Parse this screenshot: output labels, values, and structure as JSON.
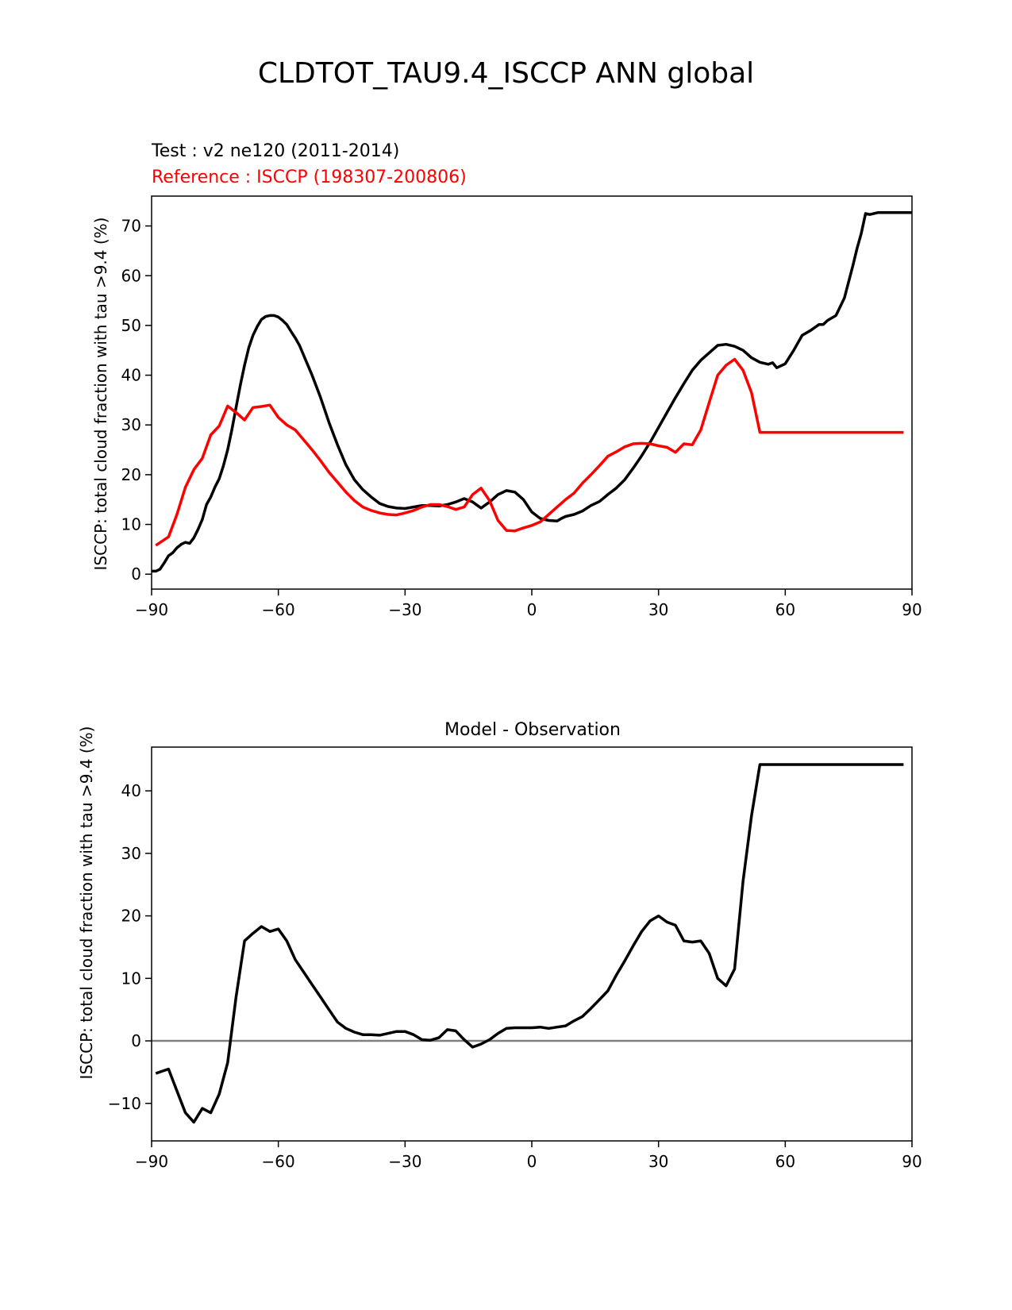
{
  "figure": {
    "title": "CLDTOT_TAU9.4_ISCCP ANN global"
  },
  "chart_data": [
    {
      "type": "line",
      "test_label": "Test : v2 ne120 (2011-2014)",
      "reference_label": "Reference : ISCCP (198307-200806)",
      "ylabel": "ISCCP: total cloud fraction with tau >9.4 (%)",
      "xlim": [
        -90,
        90
      ],
      "ylim": [
        -3,
        76
      ],
      "xticks": [
        -90,
        -60,
        -30,
        0,
        30,
        60,
        90
      ],
      "xtick_labels": [
        "−90",
        "−60",
        "−30",
        "0",
        "30",
        "60",
        "90"
      ],
      "yticks": [
        0,
        10,
        20,
        30,
        40,
        50,
        60,
        70
      ],
      "series": [
        {
          "color": "#000000",
          "x": [
            -90,
            -89,
            -88,
            -87,
            -86,
            -85,
            -84,
            -83,
            -82,
            -81,
            -80,
            -79,
            -78,
            -77,
            -76,
            -75,
            -74,
            -73,
            -72,
            -71,
            -70,
            -69,
            -68,
            -67,
            -66,
            -65,
            -64,
            -63,
            -62,
            -61,
            -60,
            -59,
            -58,
            -57,
            -56,
            -55,
            -54,
            -52,
            -50,
            -48,
            -46,
            -44,
            -42,
            -40,
            -38,
            -36,
            -34,
            -32,
            -30,
            -28,
            -26,
            -24,
            -22,
            -20,
            -18,
            -16,
            -14,
            -12,
            -10,
            -8,
            -6,
            -4,
            -2,
            0,
            2,
            4,
            6,
            7,
            8,
            10,
            12,
            14,
            16,
            18,
            20,
            22,
            24,
            26,
            28,
            30,
            32,
            34,
            36,
            38,
            40,
            42,
            44,
            46,
            48,
            50,
            52,
            54,
            56,
            57,
            58,
            60,
            62,
            64,
            66,
            68,
            69,
            70,
            72,
            74,
            76,
            77,
            78,
            79,
            80,
            81,
            82,
            83,
            84,
            85,
            86,
            87,
            88,
            89,
            90
          ],
          "y": [
            0.6,
            0.6,
            1.0,
            2.3,
            3.7,
            4.3,
            5.3,
            6.0,
            6.4,
            6.2,
            7.3,
            9.0,
            11.0,
            14.0,
            15.5,
            17.5,
            19.2,
            21.8,
            25.0,
            29.0,
            33.5,
            38.0,
            42.0,
            45.5,
            48.0,
            49.8,
            51.2,
            51.8,
            52.0,
            52.0,
            51.7,
            51.0,
            50.2,
            48.8,
            47.5,
            46.0,
            44.0,
            40.0,
            35.5,
            30.5,
            26.0,
            22.0,
            19.0,
            17.0,
            15.5,
            14.2,
            13.6,
            13.3,
            13.2,
            13.5,
            13.8,
            13.8,
            13.7,
            14.0,
            14.5,
            15.2,
            14.5,
            13.3,
            14.5,
            16.0,
            16.8,
            16.5,
            15.0,
            12.5,
            11.2,
            10.8,
            10.7,
            11.2,
            11.6,
            12.0,
            12.7,
            13.8,
            14.6,
            16.0,
            17.3,
            19.0,
            21.3,
            23.8,
            26.5,
            29.5,
            32.5,
            35.5,
            38.3,
            41.0,
            43.0,
            44.5,
            46.0,
            46.2,
            45.8,
            45.0,
            43.5,
            42.6,
            42.2,
            42.5,
            41.5,
            42.3,
            45.0,
            48.0,
            49.0,
            50.2,
            50.2,
            51.0,
            52.0,
            55.5,
            62.0,
            65.5,
            68.5,
            72.5,
            72.3,
            72.5,
            72.7,
            72.7,
            72.7,
            72.7,
            72.7,
            72.7,
            72.7,
            72.7,
            72.7
          ]
        },
        {
          "color": "#ff0000",
          "x": [
            -89,
            -86,
            -84,
            -82,
            -80,
            -78,
            -76,
            -74,
            -72,
            -70,
            -68,
            -66,
            -64,
            -62,
            -60,
            -58,
            -56,
            -54,
            -52,
            -50,
            -48,
            -46,
            -44,
            -42,
            -40,
            -38,
            -36,
            -34,
            -32,
            -30,
            -28,
            -26,
            -24,
            -22,
            -20,
            -18,
            -16,
            -14,
            -12,
            -10,
            -8,
            -6,
            -4,
            -2,
            0,
            2,
            4,
            6,
            8,
            10,
            12,
            14,
            16,
            18,
            20,
            22,
            24,
            26,
            28,
            30,
            32,
            34,
            36,
            38,
            40,
            42,
            44,
            46,
            48,
            50,
            52,
            54,
            56,
            58,
            60,
            62,
            64,
            66,
            68,
            70,
            72,
            74,
            76,
            78,
            80,
            82,
            84,
            86,
            88
          ],
          "y": [
            5.8,
            7.5,
            12.0,
            17.5,
            21.0,
            23.3,
            28.0,
            29.8,
            33.8,
            32.5,
            31.0,
            33.5,
            33.7,
            34.0,
            31.5,
            30.0,
            29.0,
            27.0,
            25.0,
            22.8,
            20.5,
            18.5,
            16.5,
            14.8,
            13.5,
            12.8,
            12.3,
            12.0,
            11.9,
            12.3,
            12.8,
            13.5,
            14.0,
            14.0,
            13.6,
            13.0,
            13.5,
            16.0,
            17.3,
            14.8,
            10.8,
            8.8,
            8.7,
            9.3,
            9.8,
            10.5,
            12.0,
            13.5,
            15.0,
            16.3,
            18.3,
            20.0,
            21.8,
            23.7,
            24.6,
            25.6,
            26.2,
            26.3,
            26.2,
            25.8,
            25.5,
            24.5,
            26.2,
            26.0,
            29.0,
            34.5,
            40.0,
            42.0,
            43.2,
            41.0,
            36.5,
            28.5,
            28.5,
            28.5,
            28.5,
            28.5,
            28.5,
            28.5,
            28.5,
            28.5,
            28.5,
            28.5,
            28.5,
            28.5,
            28.5,
            28.5,
            28.5,
            28.5,
            28.5
          ]
        }
      ]
    },
    {
      "type": "line",
      "title": "Model - Observation",
      "ylabel": "ISCCP: total cloud fraction with tau >9.4 (%)",
      "xlim": [
        -90,
        90
      ],
      "ylim": [
        -16,
        47
      ],
      "xticks": [
        -90,
        -60,
        -30,
        0,
        30,
        60,
        90
      ],
      "xtick_labels": [
        "−90",
        "−60",
        "−30",
        "0",
        "30",
        "60",
        "90"
      ],
      "yticks": [
        -10,
        0,
        10,
        20,
        30,
        40
      ],
      "ytick_labels": [
        "−10",
        "0",
        "10",
        "20",
        "30",
        "40"
      ],
      "zero_line_color": "#808080",
      "series": [
        {
          "color": "#000000",
          "x": [
            -89,
            -86,
            -84,
            -82,
            -80,
            -78,
            -76,
            -74,
            -72,
            -70,
            -68,
            -66,
            -64,
            -62,
            -60,
            -58,
            -56,
            -54,
            -52,
            -50,
            -48,
            -46,
            -44,
            -42,
            -40,
            -38,
            -36,
            -34,
            -32,
            -30,
            -28,
            -26,
            -24,
            -22,
            -20,
            -18,
            -16,
            -14,
            -12,
            -10,
            -8,
            -6,
            -4,
            -2,
            0,
            2,
            4,
            6,
            8,
            10,
            12,
            14,
            16,
            18,
            20,
            22,
            24,
            26,
            28,
            30,
            32,
            34,
            36,
            38,
            40,
            42,
            44,
            46,
            48,
            50,
            52,
            54,
            56,
            58,
            60,
            62,
            64,
            66,
            68,
            70,
            72,
            74,
            76,
            78,
            80,
            82,
            84,
            86,
            88
          ],
          "y": [
            -5.2,
            -4.5,
            -8.0,
            -11.5,
            -13.0,
            -10.8,
            -11.5,
            -8.5,
            -3.5,
            7.0,
            16.0,
            17.2,
            18.3,
            17.5,
            17.9,
            16.0,
            13.0,
            11.0,
            9.0,
            7.0,
            5.0,
            3.0,
            2.0,
            1.4,
            1.0,
            1.0,
            0.9,
            1.2,
            1.5,
            1.5,
            1.0,
            0.2,
            0.1,
            0.5,
            1.8,
            1.6,
            0.2,
            -1.0,
            -0.5,
            0.2,
            1.2,
            2.0,
            2.1,
            2.1,
            2.1,
            2.2,
            2.0,
            2.2,
            2.4,
            3.2,
            3.9,
            5.2,
            6.6,
            8.0,
            10.5,
            12.8,
            15.2,
            17.5,
            19.2,
            20.0,
            19.0,
            18.5,
            16.0,
            15.8,
            16.0,
            14.0,
            10.0,
            8.8,
            11.5,
            25.5,
            36.0,
            44.2,
            44.2,
            44.2,
            44.2,
            44.2,
            44.2,
            44.2,
            44.2,
            44.2,
            44.2,
            44.2,
            44.2,
            44.2,
            44.2,
            44.2,
            44.2,
            44.2,
            44.2
          ]
        }
      ]
    }
  ]
}
